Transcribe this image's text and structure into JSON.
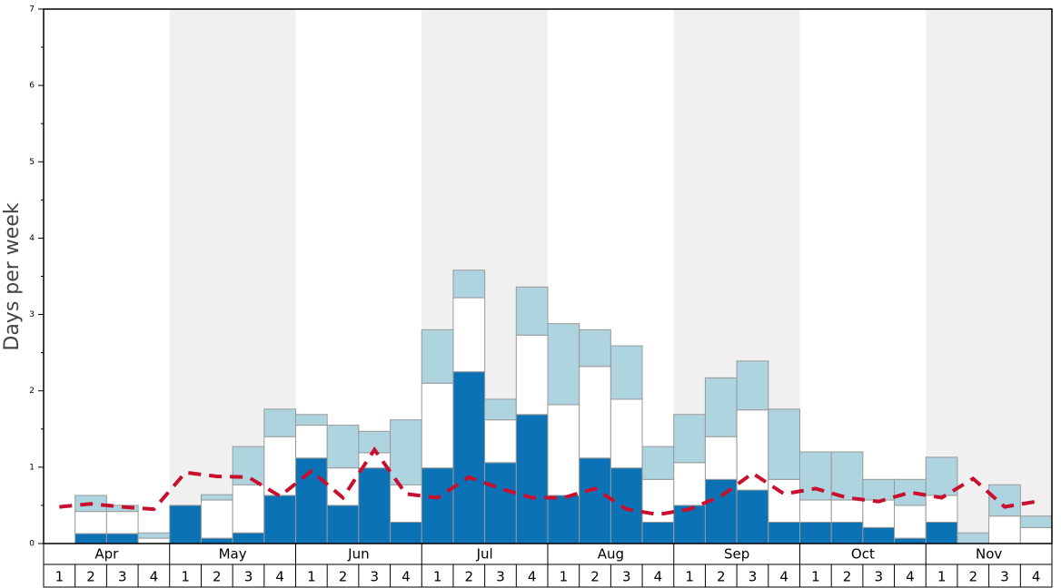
{
  "chart_data": {
    "type": "stacked_bar_line",
    "ylabel": "Days per week",
    "months": [
      "Apr",
      "May",
      "Jun",
      "Jul",
      "Aug",
      "Sep",
      "Oct",
      "Nov"
    ],
    "categories": [
      "1",
      "2",
      "3",
      "4",
      "1",
      "2",
      "3",
      "4",
      "1",
      "2",
      "3",
      "4",
      "1",
      "2",
      "3",
      "4",
      "1",
      "2",
      "3",
      "4",
      "1",
      "2",
      "3",
      "4",
      "1",
      "2",
      "3",
      "4",
      "1",
      "2",
      "3",
      "4"
    ],
    "series": [
      {
        "color": "#0a72b5",
        "values": [
          0,
          0.13,
          0.13,
          0,
          0.5,
          0.07,
          0.14,
          0.63,
          1.12,
          0.5,
          0.99,
          0.28,
          0.99,
          2.25,
          1.06,
          1.69,
          0.63,
          1.12,
          0.99,
          0.28,
          0.5,
          0.84,
          0.7,
          0.28,
          0.28,
          0.28,
          0.21,
          0.07,
          0.28,
          0,
          0,
          0
        ]
      },
      {
        "color": "#ffffff",
        "values": [
          0,
          0.29,
          0.29,
          0.07,
          0,
          0.5,
          0.63,
          0.77,
          0.43,
          0.49,
          0.2,
          0.49,
          1.11,
          0.97,
          0.56,
          1.04,
          1.19,
          1.2,
          0.9,
          0.56,
          0.56,
          0.56,
          1.05,
          0.56,
          0.29,
          0.29,
          0.36,
          0.43,
          0.35,
          0,
          0.36,
          0.21
        ]
      },
      {
        "color": "#aed4e0",
        "values": [
          0,
          0.21,
          0.08,
          0.07,
          0,
          0.07,
          0.5,
          0.36,
          0.14,
          0.56,
          0.28,
          0.85,
          0.7,
          0.36,
          0.27,
          0.63,
          1.06,
          0.48,
          0.7,
          0.43,
          0.63,
          0.77,
          0.64,
          0.92,
          0.63,
          0.63,
          0.27,
          0.34,
          0.5,
          0.14,
          0.41,
          0.15
        ]
      },
      {
        "color": "#c8102e",
        "kind": "line",
        "values": [
          0.48,
          0.52,
          0.48,
          0.45,
          0.93,
          0.88,
          0.87,
          0.62,
          0.95,
          0.6,
          1.23,
          0.65,
          0.6,
          0.87,
          0.72,
          0.6,
          0.6,
          0.72,
          0.45,
          0.38,
          0.45,
          0.62,
          0.92,
          0.65,
          0.72,
          0.6,
          0.55,
          0.67,
          0.6,
          0.85,
          0.48,
          0.55
        ]
      }
    ],
    "ylim": [
      0,
      7
    ],
    "yticks": [
      0,
      1,
      2,
      3,
      4,
      5,
      6,
      7
    ],
    "yminor": [
      0.5,
      1.5,
      2.5,
      3.5,
      4.5,
      5.5,
      6.5
    ]
  }
}
